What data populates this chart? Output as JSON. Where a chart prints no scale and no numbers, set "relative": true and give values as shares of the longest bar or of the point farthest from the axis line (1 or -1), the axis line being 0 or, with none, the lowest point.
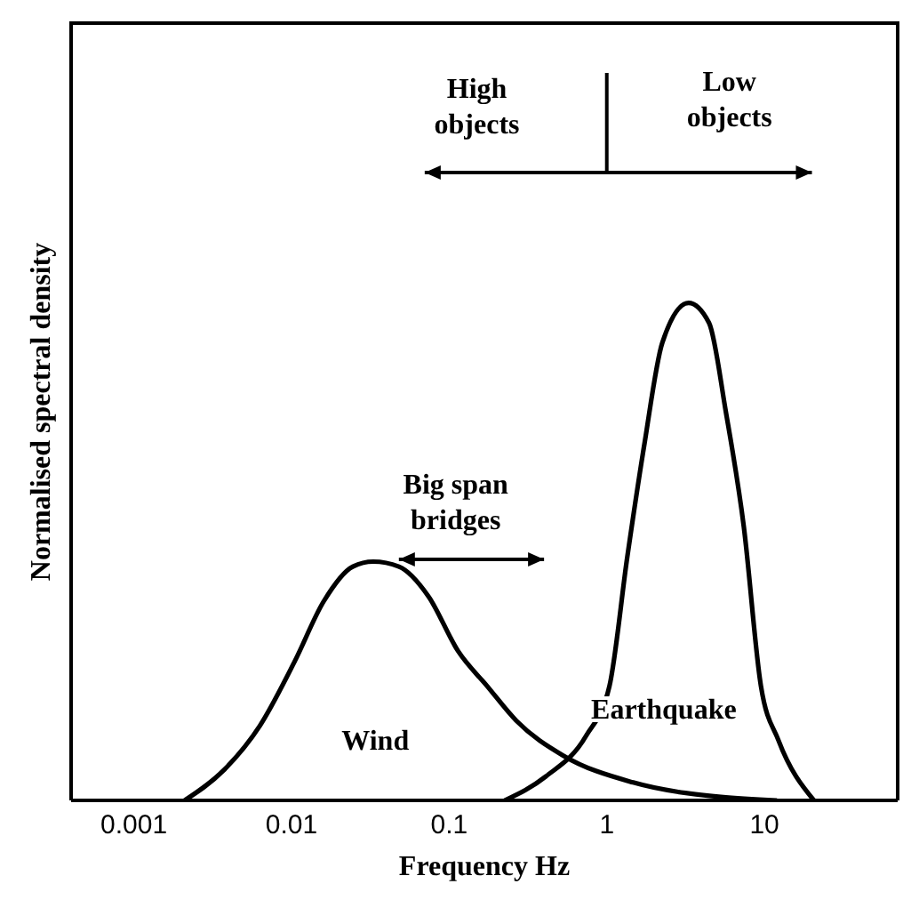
{
  "chart_data": {
    "type": "line",
    "relative": true,
    "xlabel": "Frequency Hz",
    "ylabel": "Normalised spectral density",
    "log": "x",
    "xlim": [
      0.0004,
      70
    ],
    "xticks": [
      0.001,
      0.01,
      0.1,
      1,
      10
    ],
    "marker": "none",
    "annotations": [
      "High objects",
      "Low objects",
      "Big span bridges"
    ],
    "series": [
      {
        "name": "Wind",
        "color": "#000000",
        "x": [
          0.0021,
          0.0037,
          0.0063,
          0.0105,
          0.016,
          0.0245,
          0.033,
          0.048,
          0.074,
          0.114,
          0.174,
          0.267,
          0.53,
          1.47,
          5.3,
          12
        ],
        "values": [
          0,
          0.06,
          0.15,
          0.28,
          0.4,
          0.47,
          0.48,
          0.47,
          0.41,
          0.3,
          0.23,
          0.16,
          0.09,
          0.036,
          0.007,
          0
        ]
      },
      {
        "name": "Earthquake",
        "color": "#000000",
        "x": [
          0.225,
          0.41,
          0.74,
          1.04,
          1.35,
          1.74,
          2.25,
          3.3,
          4.45,
          5.7,
          7.4,
          9.5,
          12.3,
          20.6
        ],
        "values": [
          0,
          0.048,
          0.13,
          0.23,
          0.49,
          0.72,
          0.92,
          1,
          0.96,
          0.78,
          0.55,
          0.23,
          0.12,
          0
        ]
      }
    ]
  }
}
